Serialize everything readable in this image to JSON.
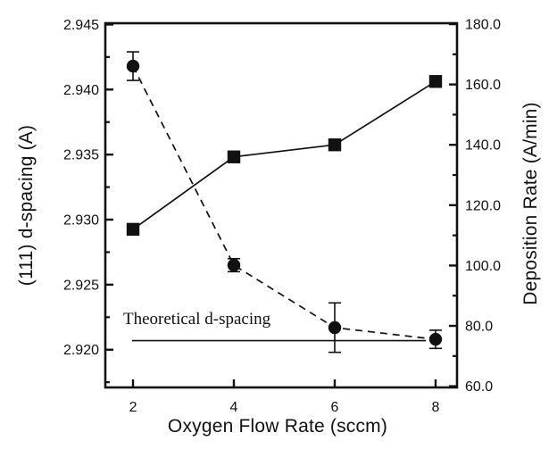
{
  "figure": {
    "background": "#ffffff",
    "ink": "#111111"
  },
  "chart_data": {
    "type": "line",
    "title": "",
    "x": [
      2,
      4,
      6,
      8
    ],
    "x_axis": {
      "label": "Oxygen Flow Rate (sccm)",
      "min": 1.451,
      "max": 8.425,
      "ticks": [
        {
          "v": 2,
          "label": "2"
        },
        {
          "v": 4,
          "label": "4"
        },
        {
          "v": 6,
          "label": "6"
        },
        {
          "v": 8,
          "label": "8"
        }
      ]
    },
    "left_axis": {
      "label": "(111) d-spacing (A)",
      "min": 2.9171,
      "max": 2.9451,
      "major_ticks": [
        {
          "v": 2.945,
          "label": "2.945"
        },
        {
          "v": 2.94,
          "label": "2.940"
        },
        {
          "v": 2.935,
          "label": "2.935"
        },
        {
          "v": 2.93,
          "label": "2.930"
        },
        {
          "v": 2.925,
          "label": "2.925"
        },
        {
          "v": 2.92,
          "label": "2.920"
        }
      ],
      "minor_ticks": [
        2.9425,
        2.9375,
        2.9325,
        2.9275,
        2.9225,
        2.9175
      ]
    },
    "right_axis": {
      "label": "Deposition Rate (A/min)",
      "min": 59.6,
      "max": 180.3,
      "major_ticks": [
        {
          "v": 180,
          "label": "180.0"
        },
        {
          "v": 160,
          "label": "160.0"
        },
        {
          "v": 140,
          "label": "140.0"
        },
        {
          "v": 120,
          "label": "120.0"
        },
        {
          "v": 100,
          "label": "100.0"
        },
        {
          "v": 80,
          "label": "80.0"
        },
        {
          "v": 60,
          "label": "60.0"
        }
      ],
      "minor_ticks": [
        170,
        150,
        130,
        110,
        90,
        70
      ]
    },
    "series": [
      {
        "name": "(111) d-spacing",
        "axis": "left",
        "marker": "circle",
        "line_style": "dashed",
        "values": [
          2.9418,
          2.9265,
          2.9217,
          2.9208
        ],
        "errors": [
          0.0011,
          0.0005,
          0.0019,
          0.0007
        ]
      },
      {
        "name": "Deposition Rate",
        "axis": "right",
        "marker": "square",
        "line_style": "solid",
        "values": [
          112,
          136,
          140,
          161
        ],
        "errors": [
          0,
          0,
          0,
          0
        ]
      }
    ],
    "annotation": {
      "text": "Theoretical d-spacing",
      "line_value": 2.9207,
      "line_x_start": 1.98,
      "line_x_end": 7.81
    },
    "legend": "none",
    "grid": false
  }
}
